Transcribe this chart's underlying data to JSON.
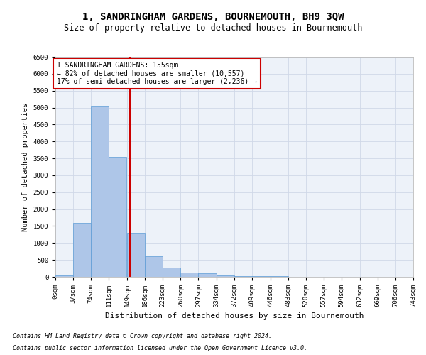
{
  "title": "1, SANDRINGHAM GARDENS, BOURNEMOUTH, BH9 3QW",
  "subtitle": "Size of property relative to detached houses in Bournemouth",
  "xlabel": "Distribution of detached houses by size in Bournemouth",
  "ylabel": "Number of detached properties",
  "footnote1": "Contains HM Land Registry data © Crown copyright and database right 2024.",
  "footnote2": "Contains public sector information licensed under the Open Government Licence v3.0.",
  "annotation_line1": "1 SANDRINGHAM GARDENS: 155sqm",
  "annotation_line2": "← 82% of detached houses are smaller (10,557)",
  "annotation_line3": "17% of semi-detached houses are larger (2,236) →",
  "property_size": 155,
  "bin_edges": [
    0,
    37,
    74,
    111,
    149,
    186,
    223,
    260,
    297,
    334,
    372,
    409,
    446,
    483,
    520,
    557,
    594,
    632,
    669,
    706,
    743
  ],
  "bar_heights": [
    50,
    1600,
    5050,
    3550,
    1300,
    600,
    280,
    130,
    100,
    50,
    30,
    30,
    20,
    10,
    5,
    2,
    1,
    1,
    0,
    0
  ],
  "bar_color": "#aec6e8",
  "bar_edge_color": "#5b9bd5",
  "vline_color": "#cc0000",
  "vline_x": 155,
  "annotation_box_color": "#cc0000",
  "ylim": [
    0,
    6500
  ],
  "yticks": [
    0,
    500,
    1000,
    1500,
    2000,
    2500,
    3000,
    3500,
    4000,
    4500,
    5000,
    5500,
    6000,
    6500
  ],
  "grid_color": "#d0d8e8",
  "bg_color": "#edf2f9",
  "title_fontsize": 10,
  "subtitle_fontsize": 8.5,
  "axis_label_fontsize": 7.5,
  "tick_fontsize": 6.5,
  "annotation_fontsize": 7,
  "footnote_fontsize": 6
}
